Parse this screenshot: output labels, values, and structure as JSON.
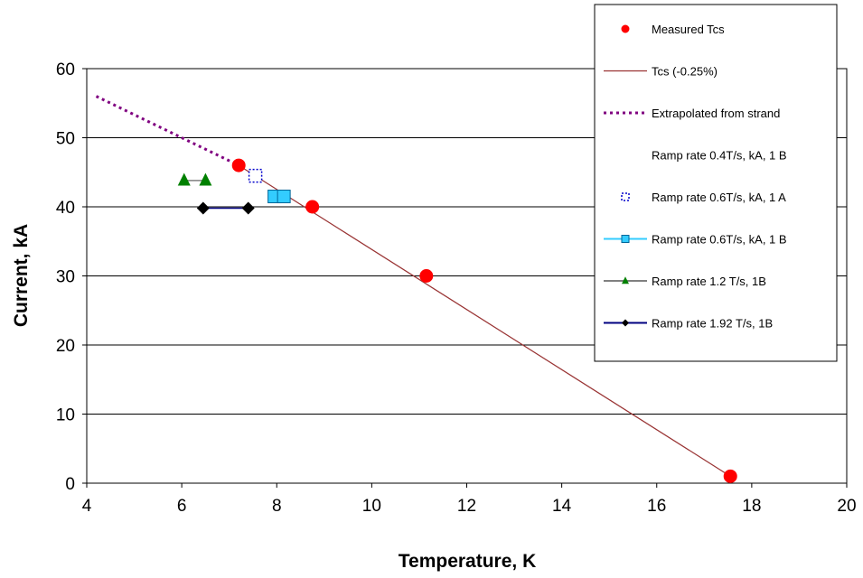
{
  "chart_data": {
    "type": "scatter",
    "xlabel": "Temperature, K",
    "ylabel": "Current, kA",
    "xlim": [
      4,
      20
    ],
    "ylim": [
      0,
      60
    ],
    "xticks": [
      4,
      6,
      8,
      10,
      12,
      14,
      16,
      18,
      20
    ],
    "yticks": [
      0,
      10,
      20,
      30,
      40,
      50,
      60
    ],
    "grid": "horizontal",
    "legend_position": "top-right",
    "series": [
      {
        "name": "Measured Tcs",
        "kind": "marker",
        "marker": "circle",
        "color": "#ff0000",
        "x": [
          7.2,
          8.75,
          11.15,
          17.55
        ],
        "y": [
          46,
          40,
          30,
          1
        ]
      },
      {
        "name": "Tcs (-0.25%)",
        "kind": "line",
        "color": "#993333",
        "x": [
          7.2,
          17.55
        ],
        "y": [
          46,
          1
        ]
      },
      {
        "name": "Extrapolated from strand",
        "kind": "dotted-line",
        "color": "#800080",
        "x": [
          4.2,
          7.2
        ],
        "y": [
          56,
          46
        ]
      },
      {
        "name": "Ramp rate 0.4T/s, kA, 1 B",
        "kind": "none",
        "color": "#ffffff",
        "x": [],
        "y": []
      },
      {
        "name": "Ramp rate 0.6T/s, kA, 1 A",
        "kind": "marker",
        "marker": "hollow-square",
        "color": "#0000cc",
        "x": [
          7.55
        ],
        "y": [
          44.5
        ]
      },
      {
        "name": "Ramp rate 0.6T/s, kA, 1 B",
        "kind": "line-marker",
        "marker": "square",
        "color": "#33ccff",
        "x": [
          7.95,
          8.15
        ],
        "y": [
          41.5,
          41.5
        ]
      },
      {
        "name": "Ramp rate 1.2 T/s, 1B",
        "kind": "line-marker",
        "marker": "triangle",
        "color": "#008000",
        "line_color": "#808080",
        "x": [
          6.05,
          6.5
        ],
        "y": [
          43.8,
          43.8
        ]
      },
      {
        "name": "Ramp rate 1.92 T/s, 1B",
        "kind": "line-marker",
        "marker": "diamond",
        "color": "#000000",
        "line_color": "#000080",
        "x": [
          6.45,
          7.4
        ],
        "y": [
          39.8,
          39.8
        ]
      }
    ]
  }
}
